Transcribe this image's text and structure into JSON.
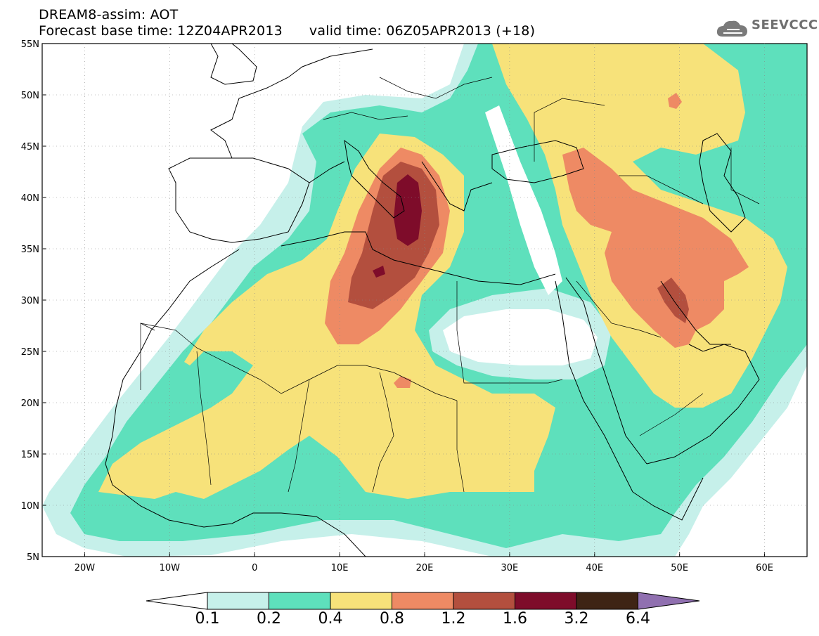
{
  "title_line1": "DREAM8-assim: AOT",
  "title_line2_base": "Forecast base time: 12Z04APR2013",
  "title_line2_valid": "valid time: 06Z05APR2013 (+18)",
  "logo_text": "SEEVCCC",
  "logo_icon": "cloud-icon",
  "map": {
    "lon_range": [
      -25,
      65
    ],
    "lat_range": [
      5,
      55
    ],
    "lat_labels": [
      "55N",
      "50N",
      "45N",
      "40N",
      "35N",
      "30N",
      "25N",
      "20N",
      "15N",
      "10N",
      "5N"
    ],
    "lon_labels": [
      "20W",
      "10W",
      "0",
      "10E",
      "20E",
      "30E",
      "40E",
      "50E",
      "60E"
    ],
    "field": "AOT"
  },
  "colorbar": {
    "labels": [
      "0.1",
      "0.2",
      "0.4",
      "0.8",
      "1.2",
      "1.6",
      "3.2",
      "6.4"
    ],
    "colors": [
      "#ffffff",
      "#c6f0ea",
      "#5ee0bc",
      "#f7e27a",
      "#ee8a64",
      "#b34f3e",
      "#7e0c2a",
      "#3e2414",
      "#9070b0"
    ]
  }
}
